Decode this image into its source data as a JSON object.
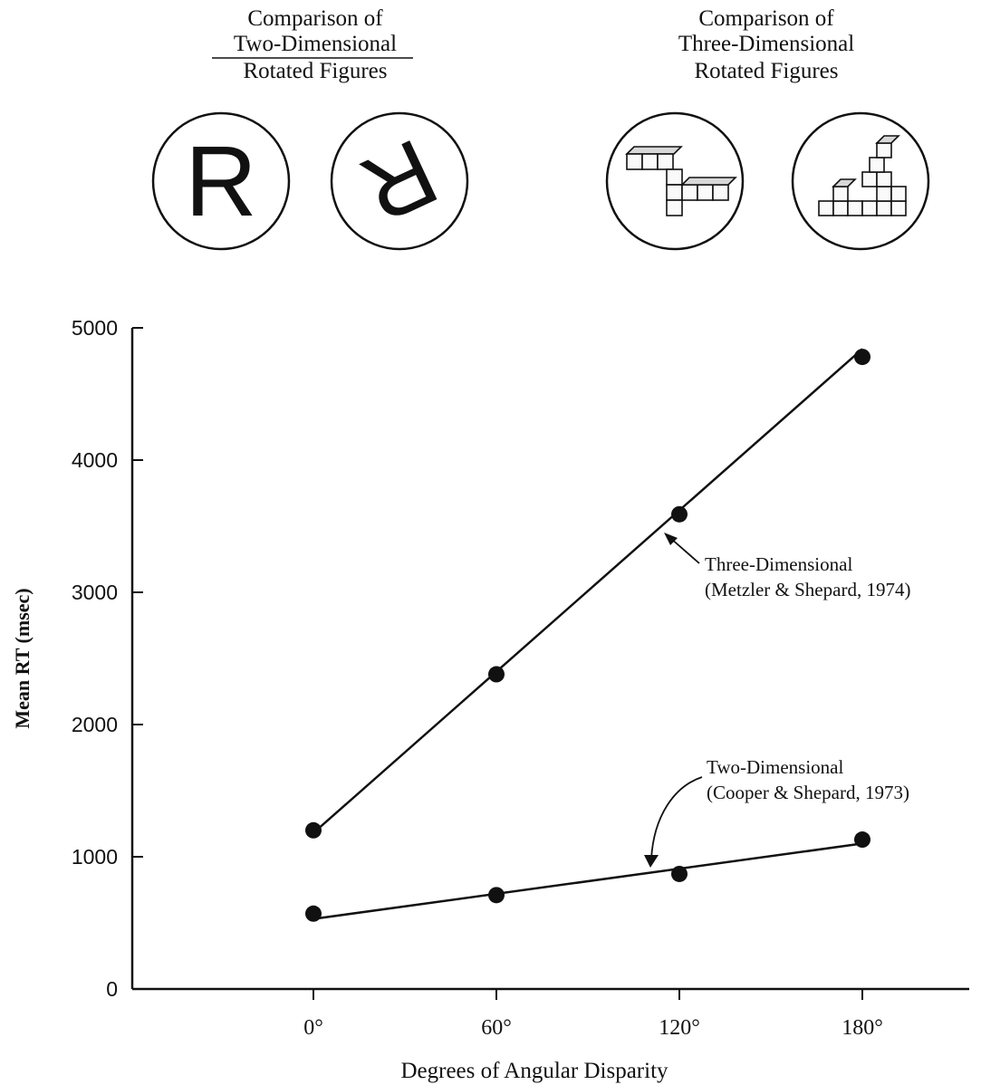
{
  "header": {
    "two_d": [
      "Comparison of",
      "Two-Dimensional",
      "Rotated Figures"
    ],
    "three_d": [
      "Comparison of",
      "Three-Dimensional",
      "Rotated Figures"
    ],
    "letter_upright": "R",
    "letter_rotated": "R"
  },
  "chart_data": {
    "type": "line",
    "title": "",
    "xlabel": "Degrees of Angular Disparity",
    "ylabel": "Mean RT (msec)",
    "x": [
      0,
      60,
      120,
      180
    ],
    "x_tick_labels": [
      "0°",
      "60°",
      "120°",
      "180°"
    ],
    "y_ticks": [
      0,
      1000,
      2000,
      3000,
      4000,
      5000
    ],
    "y_tick_labels": [
      "0",
      "1000",
      "2000",
      "3000",
      "4000",
      "5000"
    ],
    "xlim": [
      -60,
      220
    ],
    "ylim": [
      0,
      5000
    ],
    "grid": false,
    "series": [
      {
        "id": "three_d",
        "values": [
          1200,
          2380,
          3590,
          4780
        ],
        "fit_line": [
          1180,
          4840
        ],
        "annotation": [
          "Three-Dimensional",
          "(Metzler & Shepard, 1974)"
        ]
      },
      {
        "id": "two_d",
        "values": [
          570,
          710,
          870,
          1130
        ],
        "fit_line": [
          530,
          1100
        ],
        "annotation": [
          "Two-Dimensional",
          "(Cooper & Shepard, 1973)"
        ]
      }
    ],
    "colors": {
      "ink": "#111111"
    }
  }
}
